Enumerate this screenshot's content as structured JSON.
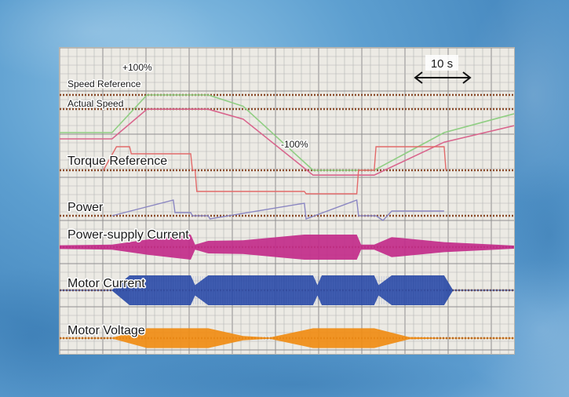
{
  "chart_data": {
    "type": "line",
    "time_scale": "10 s",
    "speed_labels": {
      "upper": "+100%",
      "lower": "-100%"
    },
    "channels": [
      {
        "name": "Speed Reference",
        "color": "#8fce82",
        "x": [
          0,
          6,
          10,
          17,
          21,
          29,
          36,
          44,
          52
        ],
        "y": [
          0,
          0,
          100,
          100,
          70,
          -100,
          -100,
          0,
          50
        ]
      },
      {
        "name": "Actual Speed",
        "color": "#d9648c",
        "x": [
          0,
          6,
          10,
          17,
          21,
          29,
          36,
          44,
          52
        ],
        "y": [
          0,
          0,
          90,
          90,
          60,
          -110,
          -110,
          -10,
          40
        ]
      },
      {
        "name": "Torque Reference",
        "color": "#e26a6a",
        "x": [
          5,
          6.5,
          8,
          8.2,
          15,
          15.2,
          15.5,
          15.7,
          28,
          28.2,
          34,
          34.2,
          36,
          36.2,
          37,
          38,
          44,
          44.2
        ],
        "y": [
          0,
          1,
          1,
          0.7,
          0.7,
          0,
          0,
          -0.9,
          -0.9,
          -1,
          -1,
          0,
          0,
          1,
          1,
          1,
          1,
          0
        ]
      },
      {
        "name": "Power",
        "color": "#8a86c2",
        "x": [
          6,
          13,
          13.2,
          15,
          15.2,
          17,
          17.2,
          28,
          28.2,
          34,
          34.2,
          36,
          36.2,
          37,
          38,
          44
        ],
        "y": [
          0,
          1,
          0.2,
          0.2,
          0,
          0,
          -0.2,
          0.8,
          -0.2,
          1,
          0,
          0,
          0,
          -0.3,
          0.3,
          0.3
        ]
      },
      {
        "name": "Power-supply Current",
        "color": "#c22b8a",
        "x": [
          0,
          6,
          10,
          15,
          15.5,
          17,
          21,
          28,
          34,
          34.5,
          36,
          38,
          44,
          52
        ],
        "y": [
          0.15,
          0.2,
          0.6,
          1,
          0.2,
          0.5,
          0.55,
          1,
          1,
          0.2,
          0.2,
          0.8,
          0.4,
          0.1
        ]
      },
      {
        "name": "Motor Current",
        "color": "#2a4aa6",
        "x": [
          0,
          6,
          8,
          15,
          15.5,
          17,
          21,
          22,
          29,
          29.5,
          30,
          36,
          36.5,
          38,
          44,
          45,
          52
        ],
        "y": [
          0,
          0,
          1,
          1,
          0.35,
          1,
          1,
          1,
          1,
          0.35,
          1,
          1,
          0.35,
          1,
          1,
          0,
          0
        ]
      },
      {
        "name": "Motor Voltage",
        "color": "#f08c14",
        "x": [
          0,
          6,
          10,
          17,
          21,
          24,
          29,
          36,
          40,
          44,
          52
        ],
        "y": [
          0,
          0,
          0.9,
          0.9,
          0.2,
          0.05,
          0.9,
          0.9,
          0.1,
          0,
          0
        ]
      }
    ],
    "grid": true,
    "legend": "inline"
  }
}
